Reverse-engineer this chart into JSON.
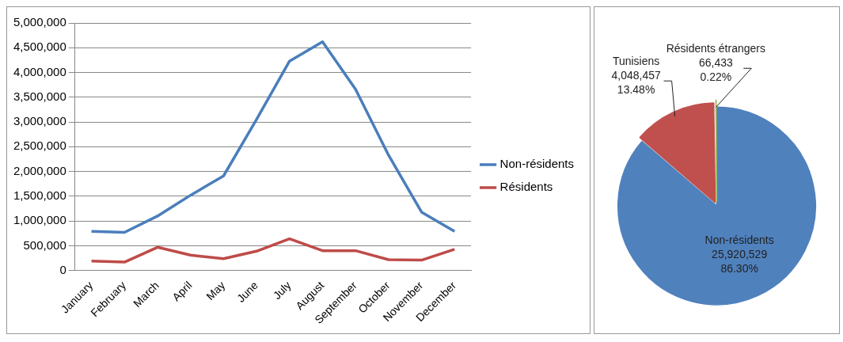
{
  "chart_data": [
    {
      "type": "line",
      "categories": [
        "January",
        "February",
        "March",
        "April",
        "May",
        "June",
        "July",
        "August",
        "September",
        "October",
        "November",
        "December"
      ],
      "series": [
        {
          "name": "Non-résidents",
          "color": "#4a7ebb",
          "values": [
            790000,
            770000,
            1100000,
            1520000,
            1910000,
            3050000,
            4230000,
            4620000,
            3660000,
            2330000,
            1180000,
            790000
          ]
        },
        {
          "name": "Résidents",
          "color": "#be4b48",
          "values": [
            190000,
            170000,
            470000,
            310000,
            240000,
            390000,
            640000,
            400000,
            400000,
            220000,
            210000,
            430000
          ]
        }
      ],
      "ylim": [
        0,
        5000000
      ],
      "yticks": [
        0,
        {
          "value": 500000,
          "label": "500,000"
        },
        {
          "value": 1000000,
          "label": "1,000,000"
        },
        {
          "value": 1500000,
          "label": "1,500,000"
        },
        {
          "value": 2000000,
          "label": "2,000,000"
        },
        {
          "value": 2500000,
          "label": "2,500,000"
        },
        {
          "value": 3000000,
          "label": "3,000,000"
        },
        {
          "value": 3500000,
          "label": "3,500,000"
        },
        {
          "value": 4000000,
          "label": "4,000,000"
        },
        {
          "value": 4500000,
          "label": "4,500,000"
        },
        {
          "value": 5000000,
          "label": "5,000,000"
        }
      ],
      "grid": "y",
      "legend": "right",
      "marker": "none",
      "line_style": "solid"
    },
    {
      "type": "pie",
      "categories": [
        "Non-résidents",
        "Tunisiens",
        "Résidents étrangers"
      ],
      "values": [
        25920529,
        4048457,
        66433
      ],
      "colors": [
        "#4f81bd",
        "#c0504d",
        "#9bbb59"
      ],
      "value_labels": [
        "25,920,529\n86.30%",
        "4,048,457\n13.48%",
        "66,433\n0.22%"
      ]
    }
  ]
}
